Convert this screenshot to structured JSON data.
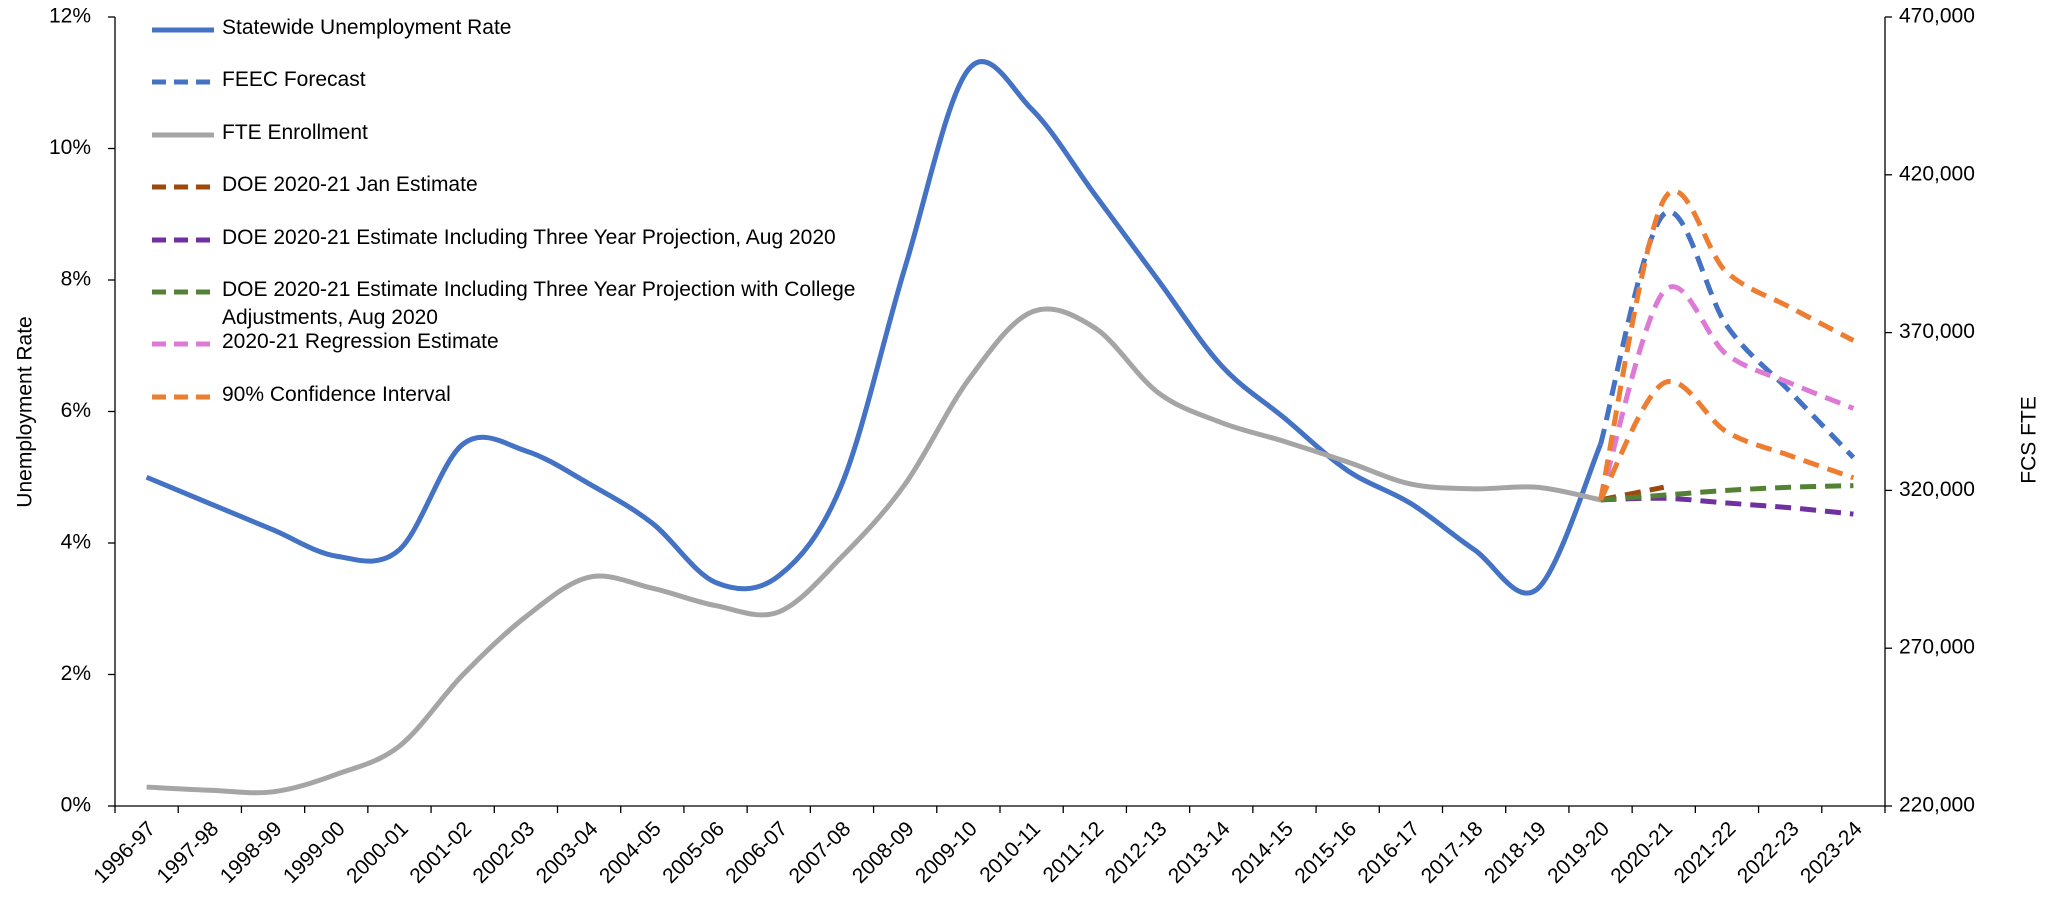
{
  "chart_data": {
    "type": "line",
    "y_label": "Unemployment Rate",
    "y2_label": "FCS FTE",
    "categories": [
      "1996-97",
      "1997-98",
      "1998-99",
      "1999-00",
      "2000-01",
      "2001-02",
      "2002-03",
      "2003-04",
      "2004-05",
      "2005-06",
      "2006-07",
      "2007-08",
      "2008-09",
      "2009-10",
      "2010-11",
      "2011-12",
      "2012-13",
      "2013-14",
      "2014-15",
      "2015-16",
      "2016-17",
      "2017-18",
      "2018-19",
      "2019-20",
      "2020-21",
      "2021-22",
      "2022-23",
      "2023-24"
    ],
    "ylim": [
      0,
      12
    ],
    "yticks": [
      {
        "value": 0,
        "label": "0%"
      },
      {
        "value": 2,
        "label": "2%"
      },
      {
        "value": 4,
        "label": "4%"
      },
      {
        "value": 6,
        "label": "6%"
      },
      {
        "value": 8,
        "label": "8%"
      },
      {
        "value": 10,
        "label": "10%"
      },
      {
        "value": 12,
        "label": "12%"
      }
    ],
    "y2lim": [
      220000,
      470000
    ],
    "y2ticks": [
      {
        "value": 220000,
        "label": "220,000"
      },
      {
        "value": 270000,
        "label": "270,000"
      },
      {
        "value": 320000,
        "label": "320,000"
      },
      {
        "value": 370000,
        "label": "370,000"
      },
      {
        "value": 420000,
        "label": "420,000"
      },
      {
        "value": 470000,
        "label": "470,000"
      }
    ],
    "grid": false,
    "legend": "top-left",
    "series": [
      {
        "name": "Statewide Unemployment Rate",
        "color": "#4472c4",
        "dashed": false,
        "values": [
          5.0,
          4.6,
          4.2,
          3.8,
          3.9,
          5.5,
          5.4,
          4.9,
          4.3,
          3.4,
          3.5,
          4.9,
          8.2,
          11.2,
          10.6,
          9.3,
          8.0,
          6.7,
          5.9,
          5.1,
          4.6,
          3.9,
          3.3,
          5.5,
          null,
          null,
          null,
          null
        ]
      },
      {
        "name": "FEEC Forecast",
        "color": "#4472c4",
        "dashed": true,
        "values": [
          null,
          null,
          null,
          null,
          null,
          null,
          null,
          null,
          null,
          null,
          null,
          null,
          null,
          null,
          null,
          null,
          null,
          null,
          null,
          null,
          null,
          null,
          null,
          5.5,
          9.0,
          7.3,
          6.3,
          5.3
        ]
      },
      {
        "name": "FTE Enrollment",
        "color": "#a5a5a5",
        "dashed": false,
        "axis": "y2",
        "values": [
          226000,
          225000,
          224500,
          230000,
          239000,
          261500,
          280000,
          292500,
          289000,
          283500,
          281500,
          299000,
          322000,
          355000,
          376500,
          371500,
          351000,
          341500,
          335500,
          329000,
          322000,
          320500,
          321000,
          317000,
          null,
          null,
          null,
          null
        ]
      },
      {
        "name": "DOE 2020-21 Jan Estimate",
        "color": "#9e480e",
        "dashed": true,
        "axis": "y2",
        "values": [
          null,
          null,
          null,
          null,
          null,
          null,
          null,
          null,
          null,
          null,
          null,
          null,
          null,
          null,
          null,
          null,
          null,
          null,
          null,
          null,
          null,
          null,
          null,
          317000,
          321000,
          null,
          null,
          null
        ]
      },
      {
        "name": "DOE 2020-21 Estimate Including Three Year Projection, Aug 2020",
        "color": "#7030a0",
        "dashed": true,
        "axis": "y2",
        "values": [
          null,
          null,
          null,
          null,
          null,
          null,
          null,
          null,
          null,
          null,
          null,
          null,
          null,
          null,
          null,
          null,
          null,
          null,
          null,
          null,
          null,
          null,
          null,
          317000,
          317500,
          316000,
          314500,
          312500
        ]
      },
      {
        "name": "DOE 2020-21 Estimate Including Three Year Projection with College Adjustments, Aug 2020",
        "color": "#548235",
        "dashed": true,
        "axis": "y2",
        "values": [
          null,
          null,
          null,
          null,
          null,
          null,
          null,
          null,
          null,
          null,
          null,
          null,
          null,
          null,
          null,
          null,
          null,
          null,
          null,
          null,
          null,
          null,
          null,
          317000,
          318500,
          320000,
          321000,
          321500
        ]
      },
      {
        "name": "2020-21 Regression Estimate",
        "color": "#dd7ad6",
        "dashed": true,
        "axis": "y2",
        "values": [
          null,
          null,
          null,
          null,
          null,
          null,
          null,
          null,
          null,
          null,
          null,
          null,
          null,
          null,
          null,
          null,
          null,
          null,
          null,
          null,
          null,
          null,
          null,
          317000,
          383000,
          363000,
          354000,
          346000
        ]
      },
      {
        "name": "90% Confidence Interval",
        "color": "#ed7d31",
        "dashed": true,
        "axis": "y2",
        "values": [
          null,
          null,
          null,
          null,
          null,
          null,
          null,
          null,
          null,
          null,
          null,
          null,
          null,
          null,
          null,
          null,
          null,
          null,
          null,
          null,
          null,
          null,
          null,
          317000,
          412000,
          389000,
          378000,
          367500
        ]
      },
      {
        "color": "#ed7d31",
        "dashed": true,
        "axis": "y2",
        "values": [
          null,
          null,
          null,
          null,
          null,
          null,
          null,
          null,
          null,
          null,
          null,
          null,
          null,
          null,
          null,
          null,
          null,
          null,
          null,
          null,
          null,
          null,
          null,
          317000,
          354000,
          338500,
          331000,
          324000
        ]
      }
    ]
  }
}
